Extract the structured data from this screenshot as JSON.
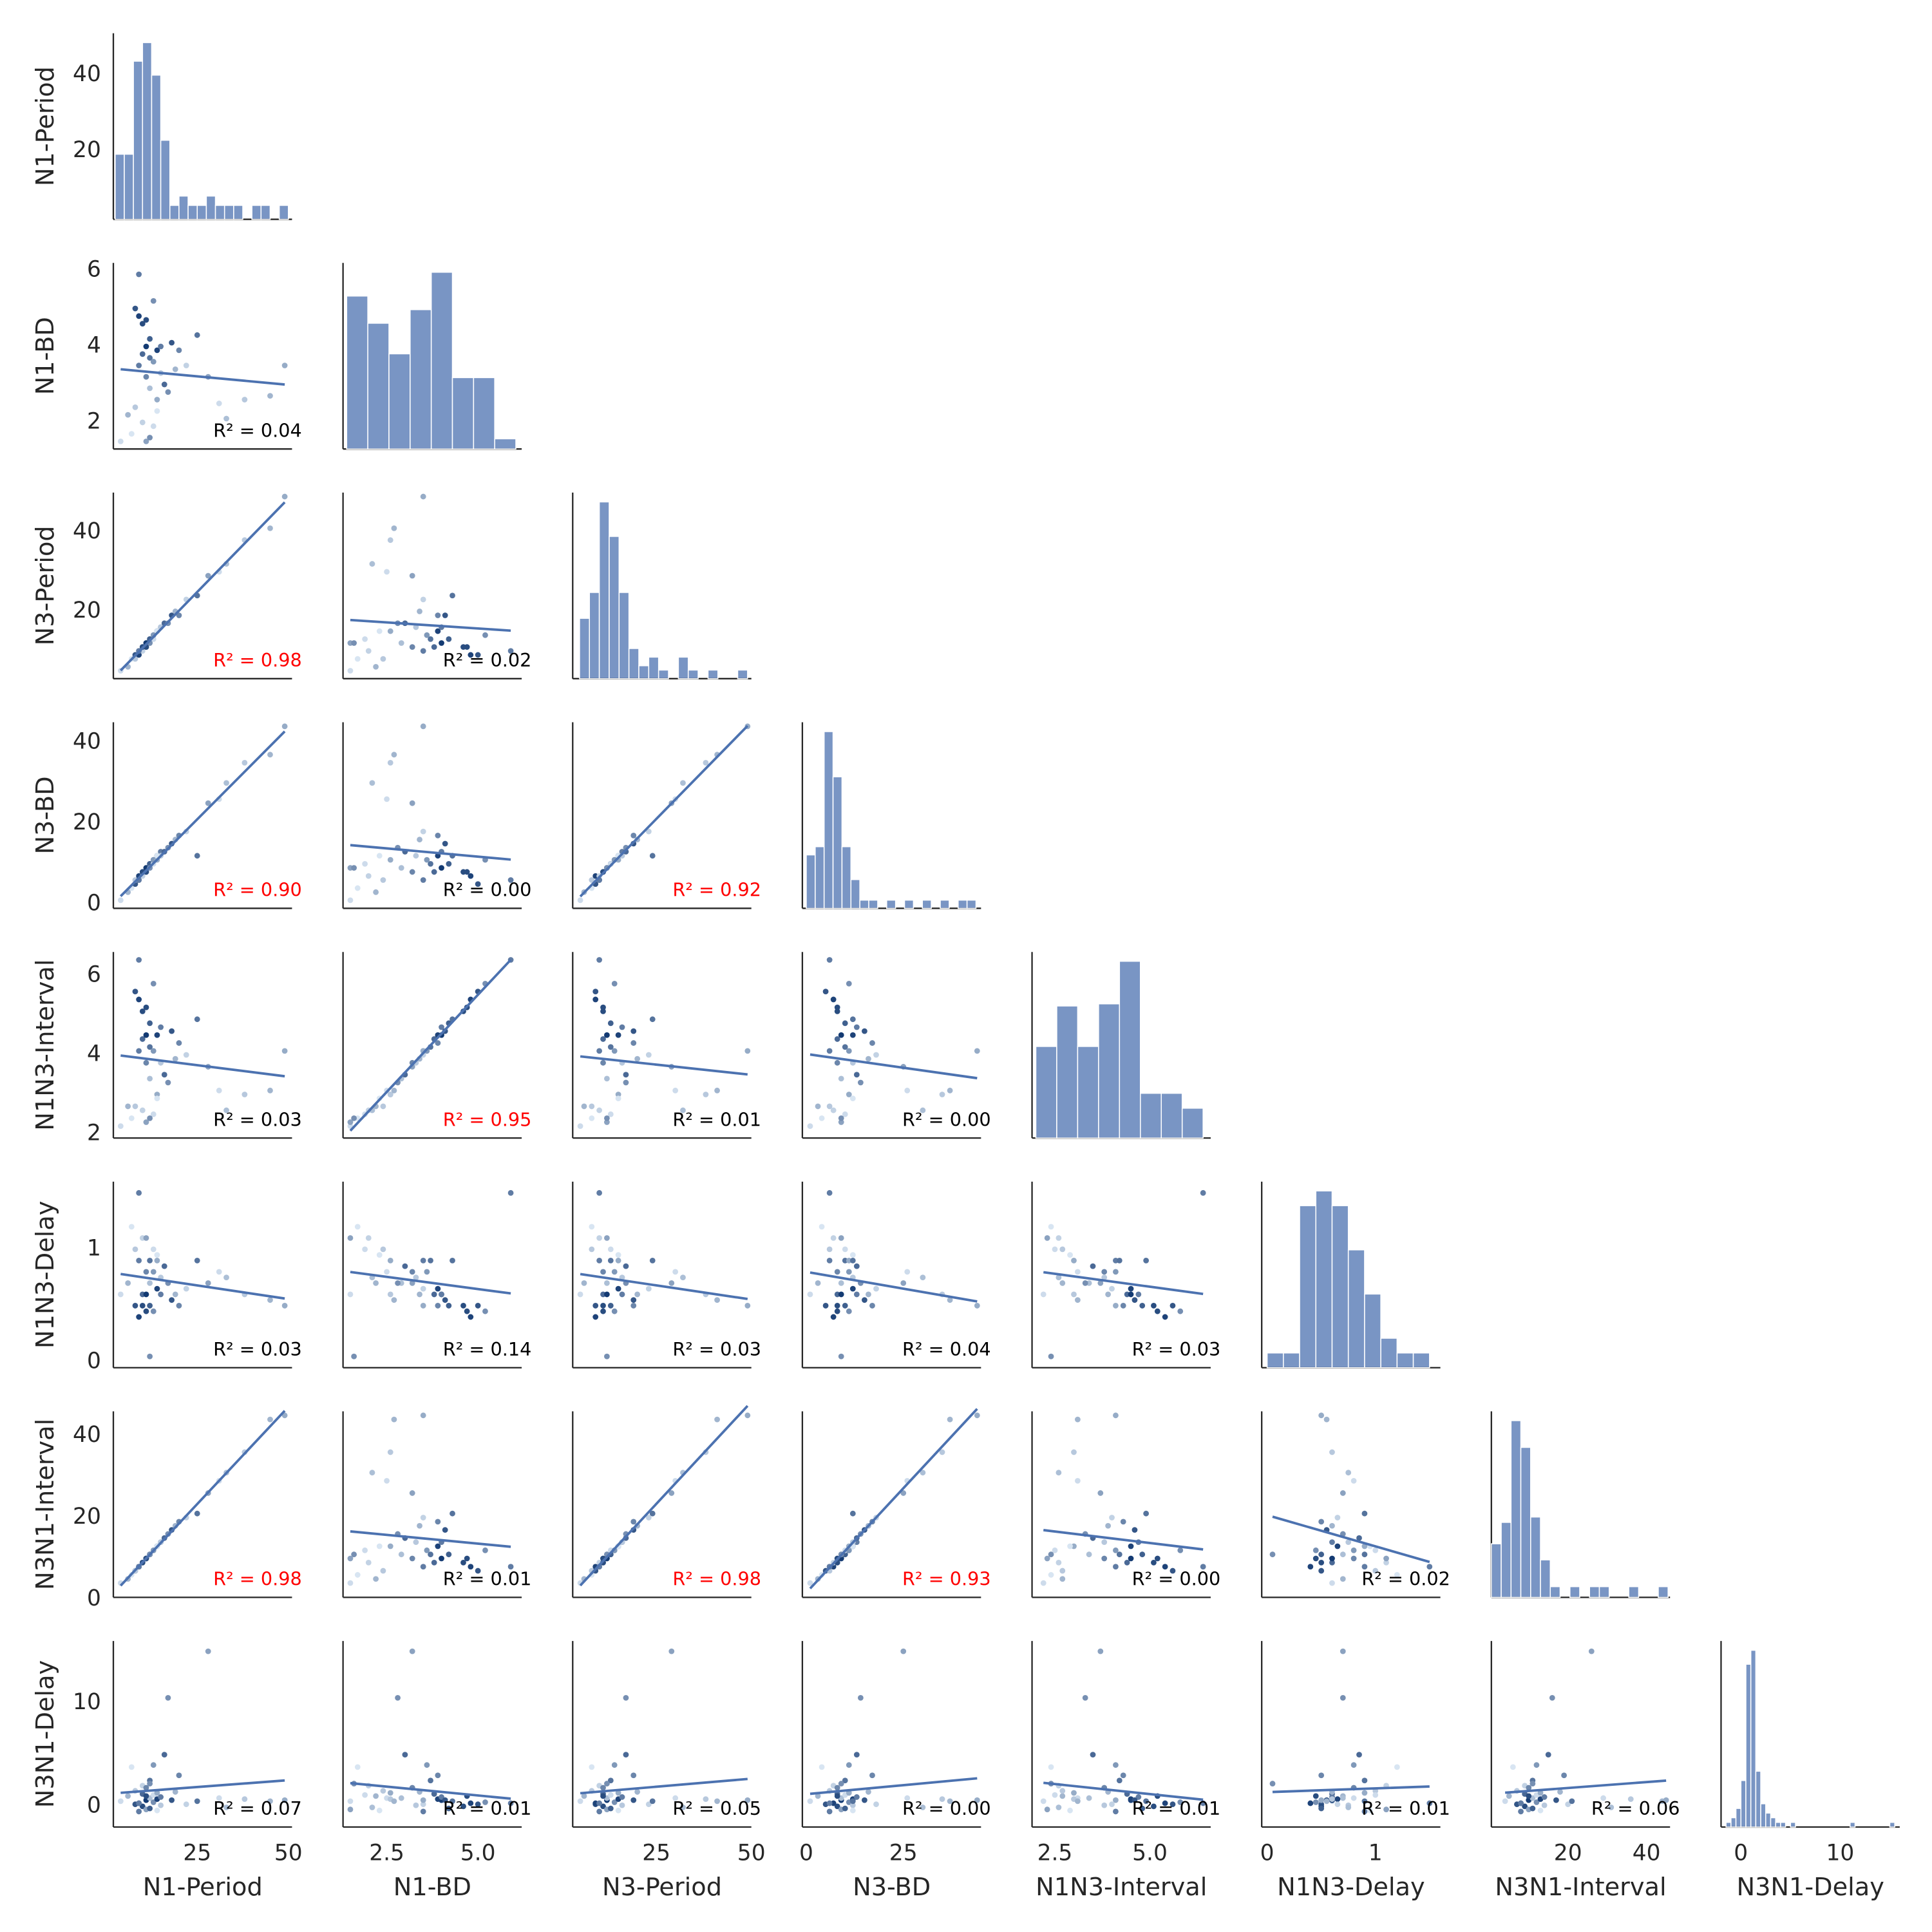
{
  "chart_data": {
    "type": "pairplot",
    "color": "#4c72b0",
    "cmap": [
      "#e3eef9",
      "#08306b"
    ],
    "hue": [
      0.1,
      0.3,
      0.05,
      0.8,
      0.2,
      0.6,
      0.9,
      0.7,
      0.15,
      0.85,
      0.4,
      0.55,
      0.95,
      0.65,
      0.25,
      0.75,
      0.5,
      0.1,
      0.45,
      0.9,
      0.35,
      0.6,
      0.2,
      0.7,
      0.5,
      0.8,
      0.3,
      0.55,
      0.15,
      0.65,
      0.4,
      0.1,
      0.25,
      0.2,
      0.3,
      0.35,
      0.6,
      0.5,
      0.05,
      0.85
    ],
    "variables": [
      {
        "name": "N1-Period",
        "lim": [
          2,
          51
        ],
        "yticks": [
          20,
          40
        ],
        "xticks": [
          25,
          50
        ],
        "values": [
          4,
          6,
          7,
          8,
          8,
          9,
          9,
          10,
          10,
          10,
          11,
          11,
          11,
          12,
          12,
          12,
          13,
          13,
          13,
          14,
          14,
          15,
          15,
          16,
          17,
          18,
          19,
          20,
          22,
          25,
          28,
          31,
          33,
          38,
          45,
          49,
          9,
          12,
          14,
          11
        ],
        "hist": {
          "bins": [
            2.5,
            5,
            7.5,
            10,
            12.5,
            15,
            17.5,
            20,
            22.5,
            25,
            27.5,
            30,
            32.5,
            35,
            37.5,
            40,
            42.5,
            45,
            47.5,
            50
          ],
          "counts": [
            14,
            14,
            34,
            38,
            31,
            17,
            3,
            5,
            3,
            3,
            5,
            3,
            3,
            3,
            0,
            3,
            3,
            0,
            3
          ]
        }
      },
      {
        "name": "N1-BD",
        "lim": [
          1.3,
          6.2
        ],
        "yticks": [
          2,
          4,
          6
        ],
        "xticks": [
          {
            "value": 2.5,
            "label": "2.5"
          },
          {
            "value": 5,
            "label": "5.0"
          }
        ],
        "values": [
          1.5,
          2.2,
          1.7,
          5.0,
          2.4,
          3.5,
          4.8,
          3.8,
          2.0,
          4.6,
          1.5,
          3.2,
          4.0,
          3.7,
          2.9,
          4.2,
          5.2,
          1.9,
          3.6,
          3.9,
          2.6,
          4.0,
          3.3,
          3.0,
          2.8,
          4.1,
          3.4,
          3.9,
          3.5,
          4.3,
          3.2,
          2.5,
          2.1,
          2.6,
          2.7,
          3.5,
          5.9,
          1.6,
          2.3,
          4.7
        ],
        "hist": {
          "bins": [
            1.4,
            1.98,
            2.56,
            3.14,
            3.72,
            4.3,
            4.88,
            5.46,
            6.04
          ],
          "counts": [
            45,
            37,
            28,
            41,
            52,
            21,
            21,
            3
          ]
        }
      },
      {
        "name": "N3-Period",
        "lim": [
          3,
          50
        ],
        "yticks": [
          20,
          40
        ],
        "xticks": [
          25,
          50
        ],
        "values": [
          5,
          6,
          8,
          9,
          8,
          10,
          9,
          11,
          10,
          11,
          12,
          11,
          12,
          13,
          12,
          13,
          14,
          13,
          14,
          15,
          15,
          16,
          16,
          17,
          17,
          19,
          20,
          19,
          23,
          24,
          29,
          30,
          32,
          38,
          41,
          49,
          10,
          12,
          15,
          11
        ],
        "hist": {
          "bins": [
            4.8,
            7.4,
            10,
            12.6,
            15.2,
            17.8,
            20.4,
            23,
            25.6,
            28.2,
            30.8,
            33.4,
            36,
            38.6,
            41.2,
            43.8,
            46.4,
            49
          ],
          "counts": [
            14,
            20,
            41,
            33,
            20,
            7,
            3,
            5,
            2,
            0,
            5,
            2,
            0,
            2,
            0,
            0,
            2
          ]
        }
      },
      {
        "name": "N3-BD",
        "lim": [
          -1,
          45
        ],
        "yticks": [
          0,
          20,
          40
        ],
        "xticks": [
          0,
          25
        ],
        "values": [
          1,
          3,
          4,
          5,
          6,
          6,
          7,
          8,
          7,
          8,
          9,
          8,
          9,
          10,
          9,
          10,
          11,
          10,
          11,
          12,
          11,
          13,
          12,
          13,
          14,
          15,
          16,
          17,
          18,
          12,
          25,
          26,
          30,
          35,
          37,
          44,
          6,
          9,
          12,
          8
        ],
        "hist": {
          "bins": [
            0,
            2.3,
            4.6,
            6.9,
            9.2,
            11.5,
            13.8,
            16.1,
            18.4,
            20.7,
            23,
            25.3,
            27.6,
            29.9,
            32.2,
            34.5,
            36.8,
            39.1,
            41.4,
            43.7
          ],
          "counts": [
            13,
            15,
            43,
            32,
            15,
            7,
            2,
            2,
            0,
            2,
            0,
            2,
            0,
            2,
            0,
            2,
            0,
            2,
            2
          ]
        }
      },
      {
        "name": "N1N3-Interval",
        "lim": [
          1.9,
          6.6
        ],
        "yticks": [
          2,
          4,
          6
        ],
        "xticks": [
          {
            "value": 2.5,
            "label": "2.5"
          },
          {
            "value": 5,
            "label": "5.0"
          }
        ],
        "values": [
          2.2,
          2.7,
          2.4,
          5.6,
          2.7,
          4.1,
          5.4,
          4.4,
          2.6,
          5.1,
          2.3,
          3.8,
          4.5,
          4.2,
          3.4,
          4.8,
          5.8,
          2.5,
          4.1,
          4.5,
          3.0,
          4.7,
          3.8,
          3.5,
          3.3,
          4.6,
          3.9,
          4.3,
          4.0,
          4.9,
          3.7,
          3.1,
          2.6,
          3.0,
          3.1,
          4.1,
          6.4,
          2.4,
          2.9,
          5.2
        ],
        "hist": {
          "bins": [
            2.0,
            2.55,
            3.1,
            3.65,
            4.2,
            4.75,
            5.3,
            5.85,
            6.4
          ],
          "counts": [
            43,
            62,
            43,
            63,
            83,
            21,
            21,
            14
          ]
        }
      },
      {
        "name": "N1N3-Delay",
        "lim": [
          -0.05,
          1.6
        ],
        "yticks": [
          0,
          1
        ],
        "xticks": [
          0,
          1
        ],
        "values": [
          0.6,
          0.7,
          1.2,
          0.5,
          1.0,
          0.9,
          0.4,
          0.6,
          1.1,
          0.5,
          1.1,
          0.8,
          0.6,
          0.9,
          0.7,
          0.5,
          0.45,
          1.0,
          0.8,
          0.65,
          0.9,
          0.6,
          0.75,
          0.85,
          0.7,
          0.55,
          0.6,
          0.5,
          0.65,
          0.9,
          0.7,
          0.8,
          0.75,
          0.6,
          0.55,
          0.5,
          1.5,
          0.05,
          0.95,
          0.45
        ],
        "hist": {
          "bins": [
            0,
            0.15,
            0.3,
            0.45,
            0.6,
            0.75,
            0.9,
            1.05,
            1.2,
            1.35,
            1.5
          ],
          "counts": [
            1,
            1,
            11,
            12,
            11,
            8,
            5,
            2,
            1,
            1
          ]
        }
      },
      {
        "name": "N3N1-Interval",
        "lim": [
          0.5,
          46
        ],
        "yticks": [
          0,
          20,
          40
        ],
        "xticks": [
          20,
          40
        ],
        "values": [
          4,
          5,
          6,
          7,
          7,
          8,
          8,
          9,
          9,
          9,
          10,
          10,
          10,
          11,
          11,
          11,
          12,
          12,
          12,
          13,
          13,
          14,
          14,
          15,
          16,
          17,
          18,
          19,
          20,
          21,
          26,
          29,
          31,
          36,
          44,
          45,
          8,
          11,
          13,
          10
        ],
        "hist": {
          "bins": [
            0.5,
            3,
            5.5,
            8,
            10.5,
            13,
            15.5,
            18,
            20.5,
            23,
            25.5,
            28,
            30.5,
            33,
            35.5,
            38,
            40.5,
            43,
            45.5
          ],
          "counts": [
            10,
            14,
            33,
            28,
            15,
            7,
            2,
            0,
            2,
            0,
            2,
            2,
            0,
            0,
            2,
            0,
            0,
            2
          ]
        }
      },
      {
        "name": "N3N1-Delay",
        "lim": [
          -2,
          16
        ],
        "yticks": [
          0,
          10
        ],
        "xticks": [
          0,
          10
        ],
        "values": [
          0.5,
          1.0,
          3.8,
          0.2,
          1.5,
          -0.5,
          0.3,
          1.2,
          2.0,
          0.0,
          -0.3,
          1.8,
          0.6,
          2.5,
          0.8,
          -0.2,
          0.4,
          1.1,
          4.0,
          0.7,
          1.3,
          0.9,
          0.1,
          5.0,
          10.5,
          0.6,
          1.4,
          3.0,
          0.2,
          0.5,
          15.0,
          0.8,
          -0.1,
          0.7,
          0.5,
          0.6,
          0.3,
          2.2,
          -0.4,
          1.0
        ],
        "hist": {
          "bins": [
            -1.5,
            -1,
            -0.5,
            0,
            0.5,
            1,
            1.5,
            2,
            2.5,
            3,
            3.5,
            4,
            4.5,
            5,
            5.5,
            6,
            6.5,
            7,
            7.5,
            8,
            8.5,
            9,
            9.5,
            10,
            10.5,
            11,
            11.5,
            12,
            12.5,
            13,
            13.5,
            14,
            14.5,
            15,
            15.5
          ],
          "counts": [
            1,
            2,
            4,
            10,
            35,
            38,
            12,
            5,
            3,
            2,
            1,
            1,
            0,
            1,
            0,
            0,
            0,
            0,
            0,
            0,
            0,
            0,
            0,
            0,
            0,
            1,
            0,
            0,
            0,
            0,
            0,
            0,
            0,
            1
          ]
        }
      }
    ],
    "panels": [
      {
        "pair": [
          1,
          0
        ],
        "value": 0.04,
        "value_label": "R² = 0.04",
        "highlight": false
      },
      {
        "pair": [
          2,
          0
        ],
        "value": 0.98,
        "value_label": "R² = 0.98",
        "highlight": true
      },
      {
        "pair": [
          2,
          1
        ],
        "value": 0.02,
        "value_label": "R² = 0.02",
        "highlight": false
      },
      {
        "pair": [
          3,
          0
        ],
        "value": 0.9,
        "value_label": "R² = 0.90",
        "highlight": true
      },
      {
        "pair": [
          3,
          1
        ],
        "value": 0.0,
        "value_label": "R² = 0.00",
        "highlight": false
      },
      {
        "pair": [
          3,
          2
        ],
        "value": 0.92,
        "value_label": "R² = 0.92",
        "highlight": true
      },
      {
        "pair": [
          4,
          0
        ],
        "value": 0.03,
        "value_label": "R² = 0.03",
        "highlight": false
      },
      {
        "pair": [
          4,
          1
        ],
        "value": 0.95,
        "value_label": "R² = 0.95",
        "highlight": true
      },
      {
        "pair": [
          4,
          2
        ],
        "value": 0.01,
        "value_label": "R² = 0.01",
        "highlight": false
      },
      {
        "pair": [
          4,
          3
        ],
        "value": 0.0,
        "value_label": "R² = 0.00",
        "highlight": false
      },
      {
        "pair": [
          5,
          0
        ],
        "value": 0.03,
        "value_label": "R² = 0.03",
        "highlight": false
      },
      {
        "pair": [
          5,
          1
        ],
        "value": 0.14,
        "value_label": "R² = 0.14",
        "highlight": false
      },
      {
        "pair": [
          5,
          2
        ],
        "value": 0.03,
        "value_label": "R² = 0.03",
        "highlight": false
      },
      {
        "pair": [
          5,
          3
        ],
        "value": 0.04,
        "value_label": "R² = 0.04",
        "highlight": false
      },
      {
        "pair": [
          5,
          4
        ],
        "value": 0.03,
        "value_label": "R² = 0.03",
        "highlight": false
      },
      {
        "pair": [
          6,
          0
        ],
        "value": 0.98,
        "value_label": "R² = 0.98",
        "highlight": true
      },
      {
        "pair": [
          6,
          1
        ],
        "value": 0.01,
        "value_label": "R² = 0.01",
        "highlight": false
      },
      {
        "pair": [
          6,
          2
        ],
        "value": 0.98,
        "value_label": "R² = 0.98",
        "highlight": true
      },
      {
        "pair": [
          6,
          3
        ],
        "value": 0.93,
        "value_label": "R² = 0.93",
        "highlight": true
      },
      {
        "pair": [
          6,
          4
        ],
        "value": 0.0,
        "value_label": "R² = 0.00",
        "highlight": false
      },
      {
        "pair": [
          6,
          5
        ],
        "value": 0.02,
        "value_label": "R² = 0.02",
        "highlight": false
      },
      {
        "pair": [
          7,
          0
        ],
        "value": 0.07,
        "value_label": "R² = 0.07",
        "highlight": false
      },
      {
        "pair": [
          7,
          1
        ],
        "value": 0.01,
        "value_label": "R² = 0.01",
        "highlight": false
      },
      {
        "pair": [
          7,
          2
        ],
        "value": 0.05,
        "value_label": "R² = 0.05",
        "highlight": false
      },
      {
        "pair": [
          7,
          3
        ],
        "value": 0.0,
        "value_label": "R² = 0.00",
        "highlight": false
      },
      {
        "pair": [
          7,
          4
        ],
        "value": 0.01,
        "value_label": "R² = 0.01",
        "highlight": false
      },
      {
        "pair": [
          7,
          5
        ],
        "value": 0.01,
        "value_label": "R² = 0.01",
        "highlight": false
      },
      {
        "pair": [
          7,
          6
        ],
        "value": 0.06,
        "value_label": "R² = 0.06",
        "highlight": false
      }
    ]
  }
}
